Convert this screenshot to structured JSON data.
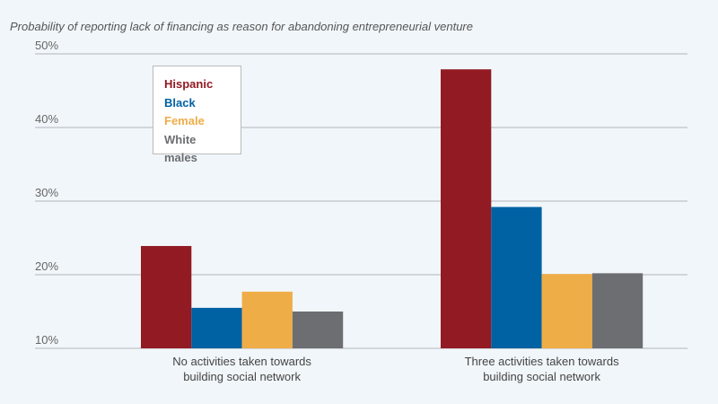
{
  "chart_data": {
    "type": "bar",
    "title": "Probability of reporting lack of financing as reason for abandoning entrepreneurial venture",
    "categories": [
      [
        "No activities taken towards",
        "building social network"
      ],
      [
        "Three activities taken towards",
        "building social network"
      ]
    ],
    "series": [
      {
        "name": "Hispanic",
        "color": "#921a22",
        "values": [
          23.9,
          47.9
        ]
      },
      {
        "name": "Black",
        "color": "#0061a3",
        "values": [
          15.5,
          29.2
        ]
      },
      {
        "name": "Female",
        "color": "#efad48",
        "values": [
          17.7,
          20.1
        ]
      },
      {
        "name": "White males",
        "color": "#6d6e71",
        "values": [
          15.0,
          20.2
        ]
      }
    ],
    "ylim": [
      10,
      50
    ],
    "yticks": [
      "10%",
      "20%",
      "30%",
      "40%",
      "50%"
    ],
    "grid": true,
    "legend": "top-left",
    "xlabel": "",
    "ylabel": ""
  }
}
